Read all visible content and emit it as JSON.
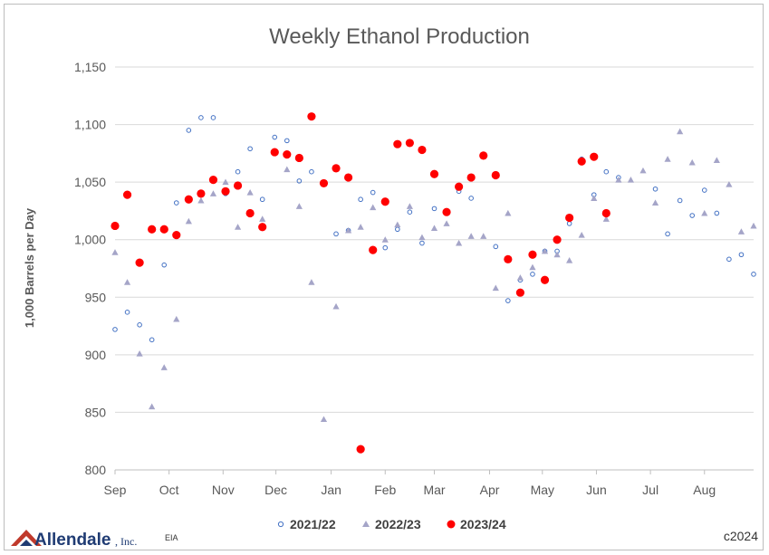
{
  "chart_data": {
    "type": "scatter",
    "title": "Weekly Ethanol Production",
    "ylabel": "1,000 Barrels per Day",
    "xlabel": "",
    "ylim": [
      800,
      1150
    ],
    "yticks": [
      800,
      850,
      900,
      950,
      1000,
      1050,
      1100,
      1150
    ],
    "ytick_labels": [
      "800",
      "850",
      "900",
      "950",
      "1,000",
      "1,050",
      "1,100",
      "1,150"
    ],
    "x_unit": "week of marketing year (Sep start)",
    "xlim": [
      0,
      52
    ],
    "month_ticks": [
      {
        "label": "Sep",
        "week": 0
      },
      {
        "label": "Oct",
        "week": 4.4
      },
      {
        "label": "Nov",
        "week": 8.8
      },
      {
        "label": "Dec",
        "week": 13.1
      },
      {
        "label": "Jan",
        "week": 17.6
      },
      {
        "label": "Feb",
        "week": 22.0
      },
      {
        "label": "Mar",
        "week": 26.0
      },
      {
        "label": "Apr",
        "week": 30.5
      },
      {
        "label": "May",
        "week": 34.8
      },
      {
        "label": "Jun",
        "week": 39.2
      },
      {
        "label": "Jul",
        "week": 43.6
      },
      {
        "label": "Aug",
        "week": 48.0
      }
    ],
    "grid": "horizontal",
    "legend_position": "bottom",
    "series": [
      {
        "name": "2021/22",
        "marker": "open-circle",
        "color": "#4472c4",
        "points": [
          [
            0,
            922
          ],
          [
            1,
            937
          ],
          [
            2,
            926
          ],
          [
            3,
            913
          ],
          [
            4,
            978
          ],
          [
            5,
            1032
          ],
          [
            6,
            1095
          ],
          [
            7,
            1106
          ],
          [
            8,
            1106
          ],
          [
            9,
            1040
          ],
          [
            10,
            1059
          ],
          [
            11,
            1079
          ],
          [
            12,
            1035
          ],
          [
            13,
            1089
          ],
          [
            14,
            1086
          ],
          [
            15,
            1051
          ],
          [
            16,
            1059
          ],
          [
            18,
            1005
          ],
          [
            19,
            1008
          ],
          [
            20,
            1035
          ],
          [
            21,
            1041
          ],
          [
            22,
            993
          ],
          [
            23,
            1009
          ],
          [
            24,
            1024
          ],
          [
            25,
            997
          ],
          [
            26,
            1027
          ],
          [
            28,
            1042
          ],
          [
            29,
            1036
          ],
          [
            31,
            994
          ],
          [
            32,
            947
          ],
          [
            33,
            965
          ],
          [
            34,
            970
          ],
          [
            35,
            990
          ],
          [
            36,
            990
          ],
          [
            37,
            1014
          ],
          [
            38,
            1070
          ],
          [
            39,
            1039
          ],
          [
            40,
            1059
          ],
          [
            41,
            1054
          ],
          [
            44,
            1044
          ],
          [
            45,
            1005
          ],
          [
            46,
            1034
          ],
          [
            47,
            1021
          ],
          [
            48,
            1043
          ],
          [
            49,
            1023
          ],
          [
            50,
            983
          ],
          [
            51,
            987
          ],
          [
            52,
            970
          ]
        ]
      },
      {
        "name": "2022/23",
        "marker": "triangle",
        "color": "#a5a5c8",
        "points": [
          [
            0,
            989
          ],
          [
            1,
            963
          ],
          [
            2,
            901
          ],
          [
            3,
            855
          ],
          [
            4,
            889
          ],
          [
            5,
            931
          ],
          [
            6,
            1016
          ],
          [
            7,
            1034
          ],
          [
            8,
            1040
          ],
          [
            9,
            1050
          ],
          [
            10,
            1011
          ],
          [
            11,
            1041
          ],
          [
            12,
            1018
          ],
          [
            14,
            1061
          ],
          [
            15,
            1029
          ],
          [
            16,
            963
          ],
          [
            17,
            844
          ],
          [
            18,
            942
          ],
          [
            19,
            1008
          ],
          [
            20,
            1011
          ],
          [
            21,
            1028
          ],
          [
            22,
            1000
          ],
          [
            23,
            1013
          ],
          [
            24,
            1029
          ],
          [
            25,
            1002
          ],
          [
            26,
            1010
          ],
          [
            27,
            1014
          ],
          [
            28,
            997
          ],
          [
            29,
            1003
          ],
          [
            30,
            1003
          ],
          [
            31,
            958
          ],
          [
            32,
            1023
          ],
          [
            33,
            967
          ],
          [
            34,
            976
          ],
          [
            35,
            990
          ],
          [
            36,
            987
          ],
          [
            37,
            982
          ],
          [
            38,
            1004
          ],
          [
            39,
            1036
          ],
          [
            40,
            1018
          ],
          [
            41,
            1052
          ],
          [
            42,
            1052
          ],
          [
            43,
            1060
          ],
          [
            44,
            1032
          ],
          [
            45,
            1070
          ],
          [
            46,
            1094
          ],
          [
            47,
            1067
          ],
          [
            48,
            1023
          ],
          [
            49,
            1069
          ],
          [
            50,
            1048
          ],
          [
            51,
            1007
          ],
          [
            52,
            1012
          ]
        ]
      },
      {
        "name": "2023/24",
        "marker": "filled-circle",
        "color": "#ff0000",
        "points": [
          [
            0,
            1012
          ],
          [
            1,
            1039
          ],
          [
            2,
            980
          ],
          [
            3,
            1009
          ],
          [
            4,
            1009
          ],
          [
            5,
            1004
          ],
          [
            6,
            1035
          ],
          [
            7,
            1040
          ],
          [
            8,
            1052
          ],
          [
            9,
            1042
          ],
          [
            10,
            1047
          ],
          [
            11,
            1023
          ],
          [
            12,
            1011
          ],
          [
            13,
            1076
          ],
          [
            14,
            1074
          ],
          [
            15,
            1071
          ],
          [
            16,
            1107
          ],
          [
            17,
            1049
          ],
          [
            18,
            1062
          ],
          [
            19,
            1054
          ],
          [
            20,
            818
          ],
          [
            21,
            991
          ],
          [
            22,
            1033
          ],
          [
            23,
            1083
          ],
          [
            24,
            1084
          ],
          [
            25,
            1078
          ],
          [
            26,
            1057
          ],
          [
            27,
            1024
          ],
          [
            28,
            1046
          ],
          [
            29,
            1054
          ],
          [
            30,
            1073
          ],
          [
            31,
            1056
          ],
          [
            32,
            983
          ],
          [
            33,
            954
          ],
          [
            34,
            987
          ],
          [
            35,
            965
          ],
          [
            36,
            1000
          ],
          [
            37,
            1019
          ],
          [
            38,
            1068
          ],
          [
            39,
            1072
          ],
          [
            40,
            1023
          ]
        ]
      }
    ]
  },
  "legend": {
    "items": [
      "2021/22",
      "2022/23",
      "2023/24"
    ]
  },
  "footer": {
    "logo_text": "Allendale",
    "logo_inc": ", Inc.",
    "source": "EIA",
    "copyright": "c2024"
  }
}
